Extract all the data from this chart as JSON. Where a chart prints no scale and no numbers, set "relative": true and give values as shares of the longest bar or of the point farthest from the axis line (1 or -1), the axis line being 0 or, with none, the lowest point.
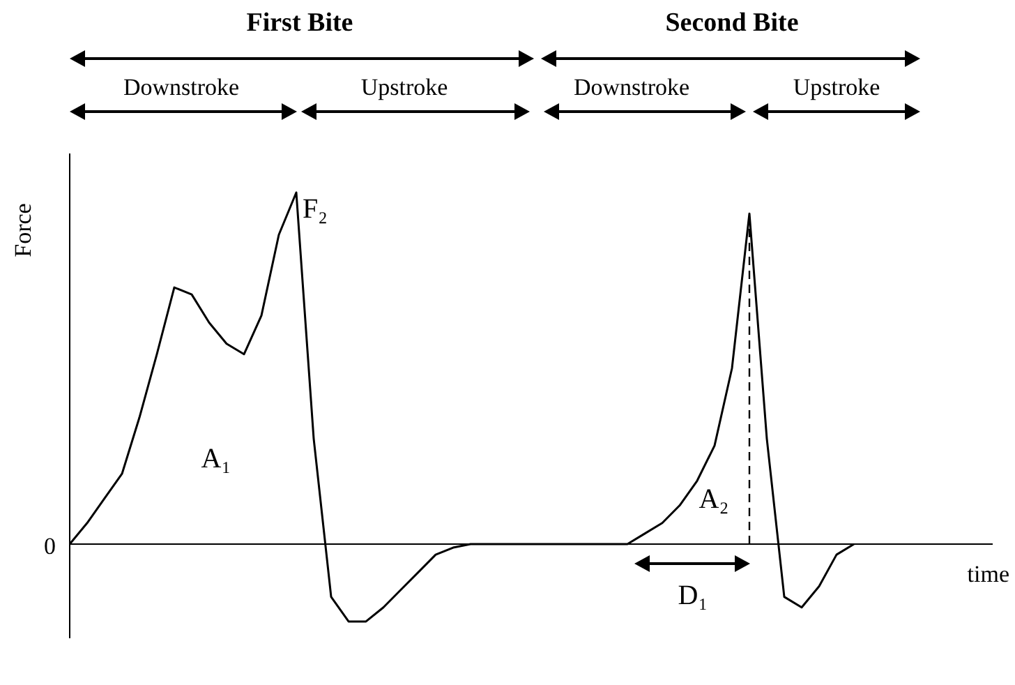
{
  "chart_data": {
    "type": "line",
    "relative": true,
    "xlabel": "time",
    "ylabel": "Force",
    "categories": [
      null,
      null,
      null,
      null,
      null,
      null,
      null,
      null,
      null,
      null,
      null,
      null,
      null,
      null,
      null,
      null,
      null,
      null,
      null,
      null,
      null,
      null,
      null,
      null,
      null,
      null,
      null,
      null,
      null,
      null,
      null,
      null,
      null,
      null,
      null,
      null,
      null,
      null,
      null,
      null,
      null,
      null,
      null,
      null,
      null,
      null
    ],
    "series": [
      {
        "color": "#000000",
        "values": [
          0,
          0.06,
          0.13,
          0.2,
          0.36,
          0.54,
          0.73,
          0.71,
          0.63,
          0.57,
          0.54,
          0.65,
          0.88,
          1.0,
          0.3,
          -0.15,
          -0.22,
          -0.22,
          -0.18,
          -0.13,
          -0.08,
          -0.03,
          -0.01,
          0,
          0,
          0,
          0,
          0,
          0,
          0,
          0,
          0,
          0,
          0.03,
          0.06,
          0.11,
          0.18,
          0.28,
          0.5,
          0.94,
          0.3,
          -0.15,
          -0.18,
          -0.12,
          -0.03,
          0
        ]
      }
    ],
    "annotations": [
      "First Bite",
      "Second Bite",
      "Downstroke",
      "Upstroke",
      "Downstroke",
      "Upstroke",
      "A₁",
      "A₂",
      "F₂",
      "D₁",
      "0"
    ]
  }
}
